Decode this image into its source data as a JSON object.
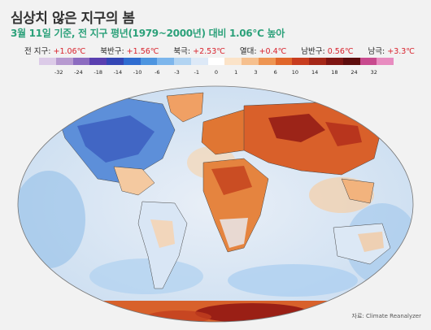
{
  "header": {
    "title": "심상치 않은 지구의 봄",
    "subtitle": "3월 11일 기준, 전 지구 평년(1979~2000년) 대비 1.06℃ 높아"
  },
  "stats": [
    {
      "label": "전 지구:",
      "value": "+1.06℃"
    },
    {
      "label": "북반구:",
      "value": "+1.56℃"
    },
    {
      "label": "북극:",
      "value": "+2.53℃"
    },
    {
      "label": "열대:",
      "value": "+0.4℃"
    },
    {
      "label": "남반구:",
      "value": "0.56℃"
    },
    {
      "label": "남극:",
      "value": "+3.3℃"
    }
  ],
  "scale": {
    "colors": [
      "#dccbe8",
      "#b79ad0",
      "#8c6cc0",
      "#5a3fb0",
      "#3446b5",
      "#2f6cd0",
      "#4d95e0",
      "#7db6ec",
      "#b2d4f2",
      "#dde9f7",
      "#ffffff",
      "#fbe3c8",
      "#f6c08e",
      "#ee9552",
      "#e0662a",
      "#c83d1f",
      "#a52718",
      "#7e1512",
      "#5e0d0d",
      "#c84a8e",
      "#e88cc0"
    ],
    "ticks": [
      "-32",
      "-24",
      "-18",
      "-14",
      "-10",
      "-6",
      "-3",
      "-1",
      "0",
      "1",
      "3",
      "6",
      "10",
      "14",
      "18",
      "24",
      "32"
    ]
  },
  "source": "자료: Climate Reanalyzer"
}
